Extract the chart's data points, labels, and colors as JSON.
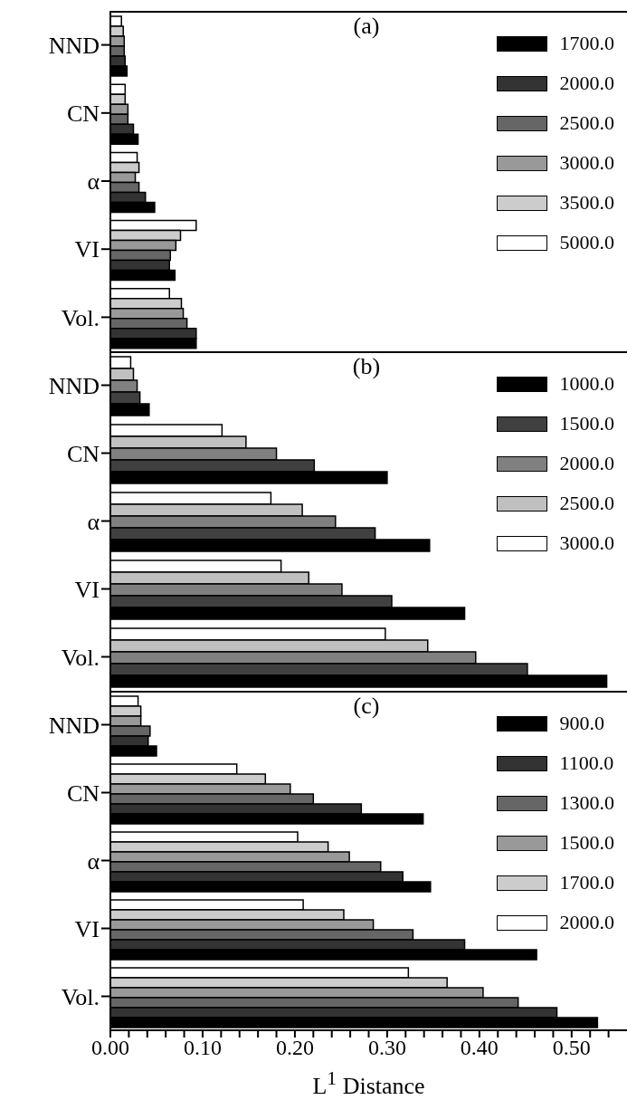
{
  "chart_data": [
    {
      "type": "bar",
      "orientation": "horizontal",
      "title": "(a)",
      "categories": [
        "NND",
        "CN",
        "α",
        "VI",
        "Vol."
      ],
      "xlim": [
        0,
        0.56
      ],
      "tick_labels": "y",
      "legend": "top right",
      "series": [
        {
          "name": "5000.0",
          "color": "#ffffff",
          "values": [
            0.012,
            0.016,
            0.029,
            0.093,
            0.064
          ]
        },
        {
          "name": "3500.0",
          "color": "#cccccc",
          "values": [
            0.014,
            0.016,
            0.031,
            0.076,
            0.077
          ]
        },
        {
          "name": "3000.0",
          "color": "#999999",
          "values": [
            0.015,
            0.019,
            0.027,
            0.071,
            0.079
          ]
        },
        {
          "name": "2500.0",
          "color": "#666666",
          "values": [
            0.015,
            0.019,
            0.031,
            0.065,
            0.083
          ]
        },
        {
          "name": "2000.0",
          "color": "#333333",
          "values": [
            0.016,
            0.025,
            0.038,
            0.064,
            0.093
          ]
        },
        {
          "name": "1700.0",
          "color": "#000000",
          "values": [
            0.018,
            0.03,
            0.048,
            0.07,
            0.093
          ]
        }
      ]
    },
    {
      "type": "bar",
      "orientation": "horizontal",
      "title": "(b)",
      "categories": [
        "NND",
        "CN",
        "α",
        "VI",
        "Vol."
      ],
      "xlim": [
        0,
        0.56
      ],
      "tick_labels": "y",
      "legend": "top right",
      "series": [
        {
          "name": "3000.0",
          "color": "#ffffff",
          "values": [
            0.022,
            0.121,
            0.174,
            0.185,
            0.298
          ]
        },
        {
          "name": "2500.0",
          "color": "#c0c0c0",
          "values": [
            0.025,
            0.147,
            0.208,
            0.215,
            0.344
          ]
        },
        {
          "name": "2000.0",
          "color": "#808080",
          "values": [
            0.029,
            0.18,
            0.244,
            0.251,
            0.396
          ]
        },
        {
          "name": "1500.0",
          "color": "#404040",
          "values": [
            0.032,
            0.221,
            0.287,
            0.305,
            0.452
          ]
        },
        {
          "name": "1000.0",
          "color": "#000000",
          "values": [
            0.042,
            0.3,
            0.346,
            0.384,
            0.538
          ]
        }
      ]
    },
    {
      "type": "bar",
      "orientation": "horizontal",
      "title": "(c)",
      "xlabel": "L$^{1}$ Distance",
      "categories": [
        "NND",
        "CN",
        "α",
        "VI",
        "Vol."
      ],
      "xlim": [
        0,
        0.56
      ],
      "legend": "top right",
      "xticks": [
        {
          "value": 0,
          "label": "0.00"
        },
        {
          "value": 0.02,
          "label": null
        },
        {
          "value": 0.04,
          "label": null
        },
        {
          "value": 0.06,
          "label": null
        },
        {
          "value": 0.08,
          "label": null
        },
        {
          "value": 0.1,
          "label": "0.10"
        },
        {
          "value": 0.12,
          "label": null
        },
        {
          "value": 0.14,
          "label": null
        },
        {
          "value": 0.16,
          "label": null
        },
        {
          "value": 0.18,
          "label": null
        },
        {
          "value": 0.2,
          "label": "0.20"
        },
        {
          "value": 0.22,
          "label": null
        },
        {
          "value": 0.24,
          "label": null
        },
        {
          "value": 0.26,
          "label": null
        },
        {
          "value": 0.28,
          "label": null
        },
        {
          "value": 0.3,
          "label": "0.30"
        },
        {
          "value": 0.32,
          "label": null
        },
        {
          "value": 0.34,
          "label": null
        },
        {
          "value": 0.36,
          "label": null
        },
        {
          "value": 0.38,
          "label": null
        },
        {
          "value": 0.4,
          "label": "0.40"
        },
        {
          "value": 0.42,
          "label": null
        },
        {
          "value": 0.44,
          "label": null
        },
        {
          "value": 0.46,
          "label": null
        },
        {
          "value": 0.48,
          "label": null
        },
        {
          "value": 0.5,
          "label": "0.50"
        },
        {
          "value": 0.52,
          "label": null
        },
        {
          "value": 0.54,
          "label": null
        }
      ],
      "series": [
        {
          "name": "2000.0",
          "color": "#ffffff",
          "values": [
            0.03,
            0.137,
            0.203,
            0.209,
            0.323
          ]
        },
        {
          "name": "1700.0",
          "color": "#cccccc",
          "values": [
            0.033,
            0.168,
            0.236,
            0.253,
            0.365
          ]
        },
        {
          "name": "1500.0",
          "color": "#999999",
          "values": [
            0.033,
            0.195,
            0.259,
            0.285,
            0.404
          ]
        },
        {
          "name": "1300.0",
          "color": "#666666",
          "values": [
            0.043,
            0.22,
            0.293,
            0.328,
            0.442
          ]
        },
        {
          "name": "1100.0",
          "color": "#333333",
          "values": [
            0.041,
            0.272,
            0.317,
            0.384,
            0.484
          ]
        },
        {
          "name": "900.0",
          "color": "#000000",
          "values": [
            0.05,
            0.339,
            0.347,
            0.462,
            0.528
          ]
        }
      ]
    }
  ]
}
